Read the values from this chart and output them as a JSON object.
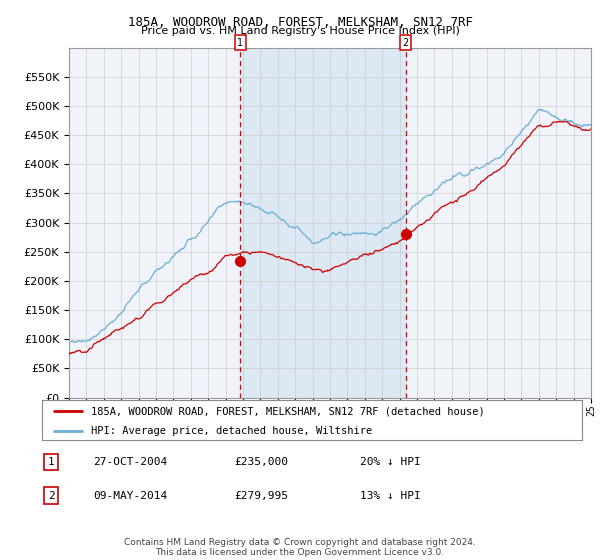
{
  "title1": "185A, WOODROW ROAD, FOREST, MELKSHAM, SN12 7RF",
  "title2": "Price paid vs. HM Land Registry's House Price Index (HPI)",
  "legend_line1": "185A, WOODROW ROAD, FOREST, MELKSHAM, SN12 7RF (detached house)",
  "legend_line2": "HPI: Average price, detached house, Wiltshire",
  "annotation1_label": "1",
  "annotation1_date": "27-OCT-2004",
  "annotation1_price": "£235,000",
  "annotation1_hpi": "20% ↓ HPI",
  "annotation2_label": "2",
  "annotation2_date": "09-MAY-2014",
  "annotation2_price": "£279,995",
  "annotation2_hpi": "13% ↓ HPI",
  "footer": "Contains HM Land Registry data © Crown copyright and database right 2024.\nThis data is licensed under the Open Government Licence v3.0.",
  "hpi_color": "#6baed6",
  "price_color": "#cc0000",
  "point_color": "#cc0000",
  "shading_color": "#dce9f5",
  "vline_color": "#cc0000",
  "grid_color": "#cccccc",
  "bg_color": "#f0f4fa",
  "ylim": [
    0,
    600000
  ],
  "yticks": [
    0,
    50000,
    100000,
    150000,
    200000,
    250000,
    300000,
    350000,
    400000,
    450000,
    500000,
    550000,
    600000
  ],
  "marker1_x": 2004.83,
  "marker1_y": 235000,
  "marker2_x": 2014.36,
  "marker2_y": 279995,
  "vline1_x": 2004.83,
  "vline2_x": 2014.36,
  "shade_x1": 2004.83,
  "shade_x2": 2014.36,
  "xmin": 1995,
  "xmax": 2025
}
